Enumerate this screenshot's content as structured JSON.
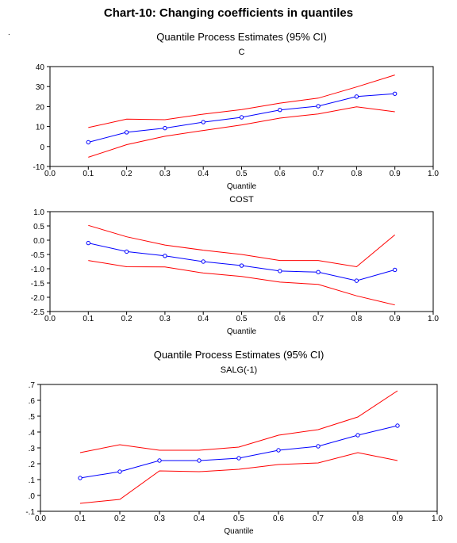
{
  "page": {
    "title": "Chart-10:  Changing coefficients in quantiles",
    "dot_mark": "."
  },
  "chart_data": [
    {
      "type": "line",
      "header": "Quantile Process Estimates (95% CI)",
      "title": "C",
      "xlabel": "Quantile",
      "ylabel": "",
      "xlim": [
        0.0,
        1.0
      ],
      "ylim": [
        -10,
        40
      ],
      "x_ticks": [
        "0.0",
        "0.1",
        "0.2",
        "0.3",
        "0.4",
        "0.5",
        "0.6",
        "0.7",
        "0.8",
        "0.9",
        "1.0"
      ],
      "y_ticks": [
        "-10",
        "0",
        "10",
        "20",
        "30",
        "40"
      ],
      "y_tick_values": [
        -10,
        0,
        10,
        20,
        30,
        40
      ],
      "x": [
        0.1,
        0.2,
        0.3,
        0.4,
        0.5,
        0.6,
        0.7,
        0.8,
        0.9
      ],
      "series": [
        {
          "role": "estimate",
          "color": "#0000ff",
          "markers": true,
          "values": [
            2.1,
            7.1,
            9.2,
            12.2,
            14.6,
            18.3,
            20.2,
            25.0,
            26.4
          ]
        },
        {
          "role": "upper",
          "color": "#ff0000",
          "markers": false,
          "values": [
            9.5,
            13.7,
            13.4,
            16.2,
            18.5,
            21.7,
            24.2,
            29.8,
            35.8
          ]
        },
        {
          "role": "lower",
          "color": "#ff0000",
          "markers": false,
          "values": [
            -5.4,
            0.9,
            5.1,
            8.0,
            10.8,
            14.2,
            16.3,
            19.9,
            17.4
          ]
        }
      ]
    },
    {
      "type": "line",
      "header": "",
      "title": "COST",
      "xlabel": "Quantile",
      "ylabel": "",
      "xlim": [
        0.0,
        1.0
      ],
      "ylim": [
        -2.5,
        1.0
      ],
      "x_ticks": [
        "0.0",
        "0.1",
        "0.2",
        "0.3",
        "0.4",
        "0.5",
        "0.6",
        "0.7",
        "0.8",
        "0.9",
        "1.0"
      ],
      "y_ticks": [
        "-2.5",
        "-2.0",
        "-1.5",
        "-1.0",
        "-0.5",
        "0.0",
        "0.5",
        "1.0"
      ],
      "y_tick_values": [
        -2.5,
        -2.0,
        -1.5,
        -1.0,
        -0.5,
        0.0,
        0.5,
        1.0
      ],
      "x": [
        0.1,
        0.2,
        0.3,
        0.4,
        0.5,
        0.6,
        0.7,
        0.8,
        0.9
      ],
      "series": [
        {
          "role": "estimate",
          "color": "#0000ff",
          "markers": true,
          "values": [
            -0.1,
            -0.4,
            -0.55,
            -0.75,
            -0.89,
            -1.08,
            -1.12,
            -1.42,
            -1.04
          ]
        },
        {
          "role": "upper",
          "color": "#ff0000",
          "markers": false,
          "values": [
            0.52,
            0.12,
            -0.17,
            -0.35,
            -0.5,
            -0.71,
            -0.71,
            -0.93,
            0.19
          ]
        },
        {
          "role": "lower",
          "color": "#ff0000",
          "markers": false,
          "values": [
            -0.71,
            -0.93,
            -0.94,
            -1.15,
            -1.27,
            -1.47,
            -1.55,
            -1.95,
            -2.27
          ]
        }
      ]
    },
    {
      "type": "line",
      "header": "Quantile Process Estimates (95% CI)",
      "title": "SALG(-1)",
      "xlabel": "Quantile",
      "ylabel": "",
      "xlim": [
        0.0,
        1.0
      ],
      "ylim": [
        -0.1,
        0.7
      ],
      "x_ticks": [
        "0.0",
        "0.1",
        "0.2",
        "0.3",
        "0.4",
        "0.5",
        "0.6",
        "0.7",
        "0.8",
        "0.9",
        "1.0"
      ],
      "y_ticks": [
        "-.1",
        ".0",
        ".1",
        ".2",
        ".3",
        ".4",
        ".5",
        ".6",
        ".7"
      ],
      "y_tick_values": [
        -0.1,
        0.0,
        0.1,
        0.2,
        0.3,
        0.4,
        0.5,
        0.6,
        0.7
      ],
      "x": [
        0.1,
        0.2,
        0.3,
        0.4,
        0.5,
        0.6,
        0.7,
        0.8,
        0.9
      ],
      "series": [
        {
          "role": "estimate",
          "color": "#0000ff",
          "markers": true,
          "values": [
            0.11,
            0.15,
            0.22,
            0.22,
            0.235,
            0.285,
            0.31,
            0.38,
            0.44
          ]
        },
        {
          "role": "upper",
          "color": "#ff0000",
          "markers": false,
          "values": [
            0.27,
            0.32,
            0.285,
            0.285,
            0.305,
            0.38,
            0.415,
            0.495,
            0.66
          ]
        },
        {
          "role": "lower",
          "color": "#ff0000",
          "markers": false,
          "values": [
            -0.05,
            -0.025,
            0.155,
            0.15,
            0.165,
            0.195,
            0.205,
            0.27,
            0.22
          ]
        }
      ]
    }
  ]
}
